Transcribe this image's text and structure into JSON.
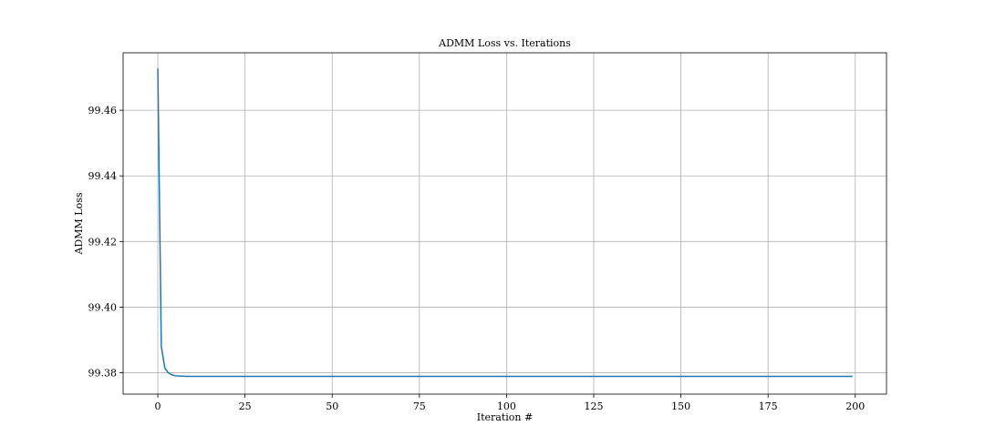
{
  "chart_data": {
    "type": "line",
    "title": "ADMM Loss vs. Iterations",
    "xlabel": "Iteration #",
    "ylabel": "ADMM Loss",
    "xlim": [
      -9.95,
      208.95
    ],
    "ylim": [
      99.3735,
      99.4775
    ],
    "xticks": [
      0,
      25,
      50,
      75,
      100,
      125,
      150,
      175,
      200
    ],
    "xtick_labels": [
      "0",
      "25",
      "50",
      "75",
      "100",
      "125",
      "150",
      "175",
      "200"
    ],
    "yticks": [
      99.38,
      99.4,
      99.42,
      99.44,
      99.46
    ],
    "ytick_labels": [
      "99.38",
      "99.40",
      "99.42",
      "99.44",
      "99.46"
    ],
    "grid": true,
    "legend": "none",
    "series": [
      {
        "color": "#1f77b4",
        "x": [
          0,
          1,
          2,
          3,
          4,
          5,
          6,
          7,
          8,
          9,
          10,
          199
        ],
        "y": [
          99.4725,
          99.388,
          99.3815,
          99.38,
          99.3794,
          99.3791,
          99.379,
          99.379,
          99.3789,
          99.3789,
          99.3789,
          99.3789
        ]
      }
    ]
  }
}
